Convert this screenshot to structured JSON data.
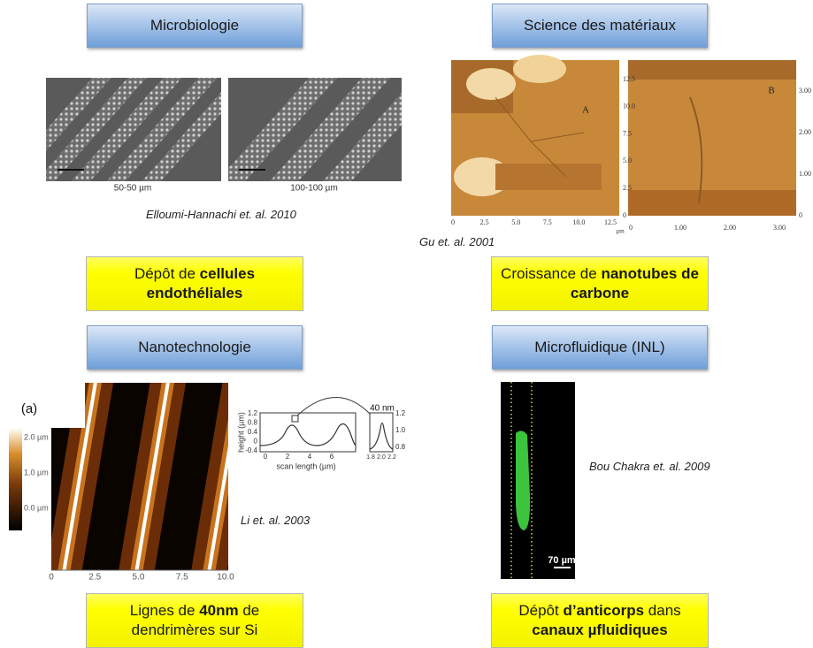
{
  "quadrants": [
    {
      "header": "Microbiologie",
      "figure": {
        "labels": [
          "50-50 µm",
          "100-100 µm"
        ]
      },
      "citation": "Elloumi-Hannachi et. al. 2010",
      "description": [
        [
          {
            "text": "Dépôt de ",
            "bold": false
          },
          {
            "text": "cellules",
            "bold": true
          }
        ],
        [
          {
            "text": "endothéliales",
            "bold": true
          }
        ]
      ]
    },
    {
      "header": "Science des matériaux",
      "figure": {
        "panel_a": {
          "label": "A",
          "yticks": [
            "12.5",
            "10.0",
            "7.5",
            "5.0",
            "2.5",
            "0"
          ],
          "xticks": [
            "0",
            "2.5",
            "5.0",
            "7.5",
            "10.0",
            "12.5"
          ],
          "unit": "µm"
        },
        "panel_b": {
          "label": "B",
          "yticks": [
            "3.00",
            "2.00",
            "1.00",
            "0"
          ],
          "xticks": [
            "0",
            "1.00",
            "2.00",
            "3.00"
          ]
        }
      },
      "citation": "Gu et. al. 2001",
      "description": [
        [
          {
            "text": "Croissance de ",
            "bold": false
          },
          {
            "text": "nanotubes de",
            "bold": true
          }
        ],
        [
          {
            "text": "carbone",
            "bold": true
          }
        ]
      ]
    },
    {
      "header": "Nanotechnologie",
      "figure": {
        "panel": "(a)",
        "colorbar": [
          "2.0 µm",
          "1.0 µm",
          "0.0 µm"
        ],
        "xticks": [
          "0",
          "2.5",
          "5.0",
          "7.5",
          "10.0"
        ],
        "inset": {
          "ylabel": "height (µm)",
          "yticks": [
            "1.2",
            "0.8",
            "0.4",
            "0",
            "-0.4"
          ],
          "xlabel": "scan length (µm)",
          "xticks": [
            "0",
            "2",
            "4",
            "6"
          ],
          "zoom_label": "40 nm",
          "zoom_yticks": [
            "1.2",
            "1.0",
            "0.8"
          ],
          "zoom_xticks": [
            "1.8",
            "2.0",
            "2.2"
          ]
        }
      },
      "citation": "Li et. al. 2003",
      "description": [
        [
          {
            "text": "Lignes de ",
            "bold": false
          },
          {
            "text": "40nm",
            "bold": true
          },
          {
            "text": " de",
            "bold": false
          }
        ],
        [
          {
            "text": "dendrimères sur Si",
            "bold": false
          }
        ]
      ]
    },
    {
      "header": "Microfluidique (INL)",
      "figure": {
        "scale": "70 µm"
      },
      "citation": "Bou Chakra et. al. 2009",
      "description": [
        [
          {
            "text": "Dépôt ",
            "bold": false
          },
          {
            "text": "d’anticorps",
            "bold": true
          },
          {
            "text": " dans",
            "bold": false
          }
        ],
        [
          {
            "text": "canaux µfluidiques",
            "bold": true
          }
        ]
      ]
    }
  ]
}
